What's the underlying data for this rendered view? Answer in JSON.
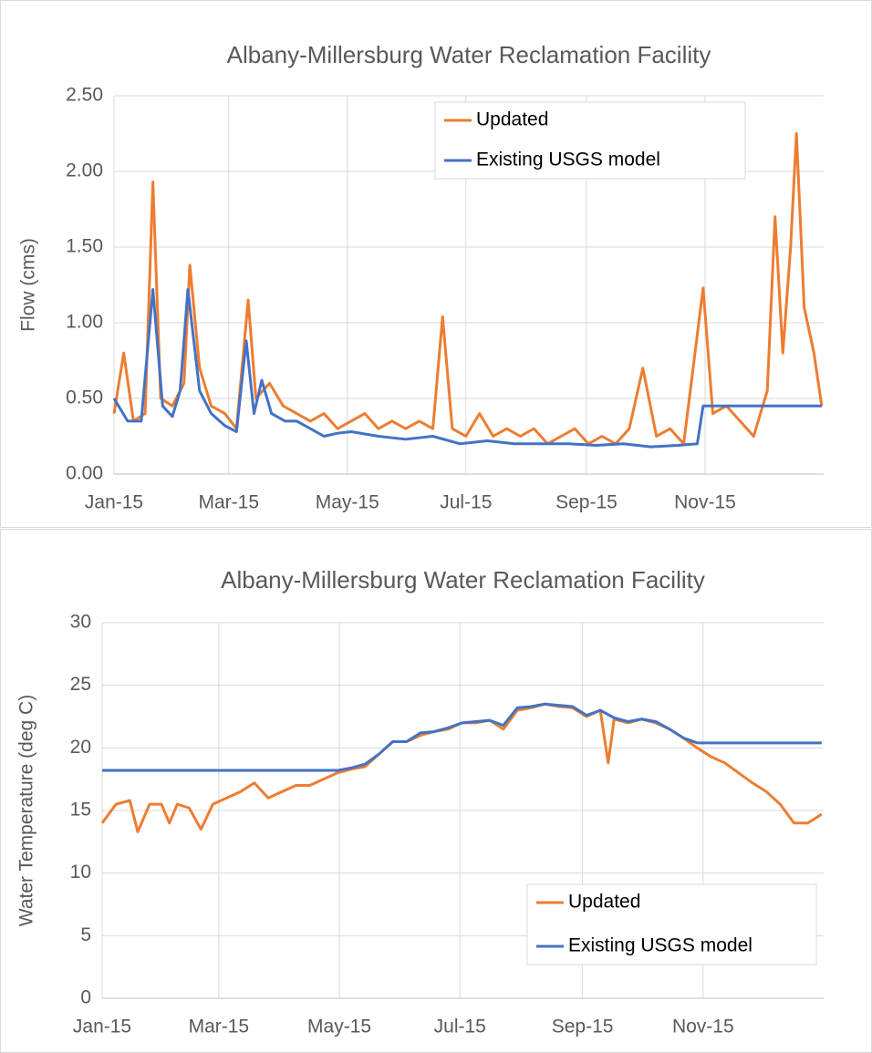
{
  "chart_data": [
    {
      "type": "line",
      "title": "Albany-Millersburg Water Reclamation Facility",
      "y_label": "Flow (cms)",
      "xlim": [
        0,
        365
      ],
      "xticks": [
        {
          "value": 0,
          "label": "Jan-15"
        },
        {
          "value": 59,
          "label": "Mar-15"
        },
        {
          "value": 120,
          "label": "May-15"
        },
        {
          "value": 181,
          "label": "Jul-15"
        },
        {
          "value": 243,
          "label": "Sep-15"
        },
        {
          "value": 304,
          "label": "Nov-15"
        }
      ],
      "ylim": [
        0,
        2.5
      ],
      "yticks": [
        {
          "value": 0,
          "label": "0.00"
        },
        {
          "value": 0.5,
          "label": "0.50"
        },
        {
          "value": 1,
          "label": "1.00"
        },
        {
          "value": 1.5,
          "label": "1.50"
        },
        {
          "value": 2,
          "label": "2.00"
        },
        {
          "value": 2.5,
          "label": "2.50"
        }
      ],
      "grid": true,
      "legend": "top-right",
      "series": [
        {
          "name": "Updated",
          "color": "#ed7d31",
          "x": [
            0,
            5,
            10,
            16,
            20,
            24,
            30,
            36,
            39,
            44,
            50,
            57,
            63,
            69,
            73,
            80,
            87,
            94,
            101,
            108,
            115,
            122,
            129,
            136,
            143,
            150,
            157,
            164,
            169,
            174,
            181,
            188,
            195,
            202,
            209,
            216,
            223,
            230,
            237,
            244,
            251,
            258,
            265,
            272,
            279,
            286,
            293,
            303,
            308,
            315,
            322,
            329,
            336,
            340,
            344,
            348,
            351,
            355,
            360,
            364
          ],
          "values": [
            0.4,
            0.8,
            0.35,
            0.4,
            1.93,
            0.5,
            0.45,
            0.6,
            1.38,
            0.7,
            0.45,
            0.4,
            0.3,
            1.15,
            0.5,
            0.6,
            0.45,
            0.4,
            0.35,
            0.4,
            0.3,
            0.35,
            0.4,
            0.3,
            0.35,
            0.3,
            0.35,
            0.3,
            1.04,
            0.3,
            0.25,
            0.4,
            0.25,
            0.3,
            0.25,
            0.3,
            0.2,
            0.25,
            0.3,
            0.2,
            0.25,
            0.2,
            0.3,
            0.7,
            0.25,
            0.3,
            0.2,
            1.23,
            0.4,
            0.45,
            0.35,
            0.25,
            0.55,
            1.7,
            0.8,
            1.5,
            2.25,
            1.1,
            0.8,
            0.45
          ]
        },
        {
          "name": "Existing USGS model",
          "color": "#4472c4",
          "x": [
            0,
            7,
            14,
            20,
            25,
            30,
            34,
            38,
            44,
            50,
            57,
            63,
            68,
            72,
            76,
            81,
            88,
            94,
            101,
            108,
            115,
            122,
            136,
            150,
            164,
            178,
            192,
            206,
            220,
            234,
            248,
            262,
            276,
            290,
            300,
            303,
            364
          ],
          "values": [
            0.5,
            0.35,
            0.35,
            1.22,
            0.45,
            0.38,
            0.55,
            1.22,
            0.55,
            0.4,
            0.32,
            0.28,
            0.88,
            0.4,
            0.62,
            0.4,
            0.35,
            0.35,
            0.3,
            0.25,
            0.27,
            0.28,
            0.25,
            0.23,
            0.25,
            0.2,
            0.22,
            0.2,
            0.2,
            0.2,
            0.19,
            0.2,
            0.18,
            0.19,
            0.2,
            0.45,
            0.45
          ]
        }
      ]
    },
    {
      "type": "line",
      "title": "Albany-Millersburg Water Reclamation Facility",
      "y_label": "Water Temperature  (deg C)",
      "xlim": [
        0,
        365
      ],
      "xticks": [
        {
          "value": 0,
          "label": "Jan-15"
        },
        {
          "value": 59,
          "label": "Mar-15"
        },
        {
          "value": 120,
          "label": "May-15"
        },
        {
          "value": 181,
          "label": "Jul-15"
        },
        {
          "value": 243,
          "label": "Sep-15"
        },
        {
          "value": 304,
          "label": "Nov-15"
        }
      ],
      "ylim": [
        0,
        30
      ],
      "yticks": [
        0,
        5,
        10,
        15,
        20,
        25,
        30
      ],
      "grid": true,
      "legend": "bottom-right",
      "series": [
        {
          "name": "Updated",
          "color": "#ed7d31",
          "x": [
            0,
            7,
            14,
            18,
            24,
            30,
            34,
            38,
            44,
            50,
            56,
            63,
            70,
            77,
            84,
            91,
            98,
            105,
            112,
            119,
            126,
            133,
            140,
            147,
            154,
            161,
            168,
            175,
            182,
            189,
            196,
            203,
            210,
            217,
            224,
            231,
            238,
            245,
            252,
            256,
            259,
            266,
            273,
            280,
            287,
            294,
            301,
            308,
            315,
            322,
            329,
            336,
            343,
            350,
            357,
            364
          ],
          "values": [
            14,
            15.5,
            15.8,
            13.3,
            15.5,
            15.5,
            14,
            15.5,
            15.2,
            13.5,
            15.5,
            16,
            16.5,
            17.2,
            16,
            16.5,
            17,
            17,
            17.5,
            18,
            18.3,
            18.5,
            19.5,
            20.5,
            20.5,
            21,
            21.3,
            21.5,
            22,
            22,
            22.2,
            21.5,
            23,
            23.2,
            23.5,
            23.3,
            23.2,
            22.5,
            23,
            18.8,
            22.3,
            22,
            22.3,
            22,
            21.5,
            20.8,
            20,
            19.3,
            18.8,
            18,
            17.2,
            16.5,
            15.5,
            14,
            14,
            14.7
          ]
        },
        {
          "name": "Existing USGS model",
          "color": "#4472c4",
          "x": [
            0,
            119,
            126,
            133,
            140,
            147,
            154,
            161,
            168,
            175,
            182,
            189,
            196,
            203,
            210,
            217,
            224,
            231,
            238,
            245,
            252,
            259,
            266,
            273,
            280,
            287,
            294,
            301,
            364
          ],
          "values": [
            18.2,
            18.2,
            18.4,
            18.7,
            19.5,
            20.5,
            20.5,
            21.2,
            21.3,
            21.6,
            22,
            22.1,
            22.2,
            21.8,
            23.2,
            23.3,
            23.5,
            23.4,
            23.3,
            22.6,
            23,
            22.4,
            22.1,
            22.3,
            22.1,
            21.5,
            20.8,
            20.4,
            20.4
          ]
        }
      ]
    }
  ]
}
